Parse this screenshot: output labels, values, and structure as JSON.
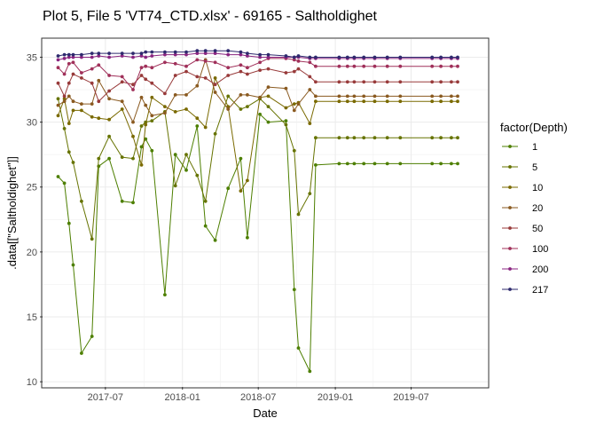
{
  "chart_data": {
    "type": "line",
    "title": "Plot 5, File 5 'VT74_CTD.xlsx' - 69165  -  Saltholdighet",
    "xlabel": "Date",
    "ylabel": ".data[[\"Saltholdighet\"]]",
    "x_ticks": [
      "2017-07",
      "2018-01",
      "2018-07",
      "2019-01",
      "2019-07"
    ],
    "y_ticks": [
      10,
      15,
      20,
      25,
      30,
      35
    ],
    "xlim": [
      "2017-02-01",
      "2019-12-31"
    ],
    "ylim": [
      9.6,
      36.4
    ],
    "grid": true,
    "legend_title": "factor(Depth)",
    "legend_position": "right",
    "x": [
      "2017-03-10",
      "2017-03-25",
      "2017-04-05",
      "2017-04-15",
      "2017-05-05",
      "2017-05-30",
      "2017-06-15",
      "2017-07-10",
      "2017-08-10",
      "2017-09-05",
      "2017-09-25",
      "2017-10-05",
      "2017-10-20",
      "2017-11-20",
      "2017-12-15",
      "2018-01-10",
      "2018-02-05",
      "2018-02-25",
      "2018-03-20",
      "2018-04-20",
      "2018-05-20",
      "2018-06-05",
      "2018-07-05",
      "2018-07-25",
      "2018-09-05",
      "2018-09-25",
      "2018-10-05",
      "2018-11-01",
      "2018-11-15",
      "2019-01-10",
      "2019-01-30",
      "2019-02-15",
      "2019-03-10",
      "2019-04-05",
      "2019-05-05",
      "2019-06-05",
      "2019-08-20",
      "2019-09-10",
      "2019-10-05",
      "2019-10-20"
    ],
    "series": [
      {
        "name": "1",
        "color": "#4d7f00",
        "values": [
          25.8,
          25.3,
          22.2,
          19.0,
          12.2,
          13.5,
          26.6,
          27.2,
          23.9,
          23.8,
          28.1,
          28.7,
          27.8,
          16.7,
          27.5,
          26.3,
          29.7,
          22.0,
          20.9,
          24.9,
          27.2,
          21.1,
          30.6,
          30.0,
          30.1,
          17.1,
          12.6,
          10.8,
          26.7,
          26.8,
          26.8,
          26.8,
          26.8,
          26.8,
          26.8,
          26.8,
          26.8,
          26.8,
          26.8,
          26.8
        ]
      },
      {
        "name": "5",
        "color": "#667300",
        "values": [
          31.8,
          29.5,
          27.7,
          26.9,
          23.9,
          21.0,
          27.2,
          28.9,
          27.3,
          27.2,
          29.7,
          30.0,
          30.1,
          30.8,
          25.1,
          27.5,
          25.9,
          23.9,
          29.1,
          32.0,
          31.0,
          31.2,
          31.8,
          31.2,
          29.8,
          27.8,
          22.9,
          24.5,
          28.8,
          28.8,
          28.8,
          28.8,
          28.8,
          28.8,
          28.8,
          28.8,
          28.8,
          28.8,
          28.8,
          28.8
        ]
      },
      {
        "name": "10",
        "color": "#7a6a00",
        "values": [
          30.5,
          31.8,
          29.9,
          30.9,
          30.9,
          30.4,
          30.3,
          30.2,
          31.0,
          28.9,
          26.7,
          29.8,
          31.9,
          31.2,
          30.8,
          31.0,
          30.3,
          29.6,
          33.4,
          31.2,
          24.7,
          25.5,
          31.9,
          32.0,
          31.1,
          31.4,
          31.5,
          29.9,
          31.6,
          31.6,
          31.6,
          31.6,
          31.6,
          31.6,
          31.6,
          31.6,
          31.6,
          31.6,
          31.6,
          31.6
        ]
      },
      {
        "name": "20",
        "color": "#8a5a20",
        "values": [
          31.3,
          31.6,
          32.0,
          31.6,
          31.4,
          31.4,
          33.2,
          31.8,
          31.6,
          30.0,
          31.9,
          31.3,
          30.5,
          30.7,
          32.1,
          32.1,
          32.8,
          34.8,
          32.3,
          31.0,
          32.1,
          32.1,
          31.9,
          32.7,
          32.6,
          30.9,
          31.4,
          32.5,
          32.0,
          32.0,
          32.0,
          32.0,
          32.0,
          32.0,
          32.0,
          32.0,
          32.0,
          32.0,
          32.0,
          32.0
        ]
      },
      {
        "name": "50",
        "color": "#983a3a",
        "values": [
          33.0,
          32.0,
          33.0,
          33.7,
          33.4,
          33.0,
          31.6,
          32.4,
          33.1,
          32.9,
          33.6,
          33.3,
          33.0,
          32.2,
          33.6,
          33.9,
          33.5,
          33.4,
          32.9,
          33.6,
          33.9,
          33.7,
          34.0,
          34.1,
          33.8,
          33.9,
          34.1,
          33.5,
          33.1,
          33.1,
          33.1,
          33.1,
          33.1,
          33.1,
          33.1,
          33.1,
          33.1,
          33.1,
          33.1,
          33.1
        ]
      },
      {
        "name": "100",
        "color": "#a0305a",
        "values": [
          34.2,
          33.7,
          34.5,
          34.6,
          33.8,
          34.1,
          34.4,
          33.6,
          33.5,
          32.5,
          34.2,
          34.3,
          34.2,
          34.6,
          34.5,
          34.3,
          34.8,
          34.7,
          34.6,
          34.2,
          34.4,
          34.2,
          34.6,
          34.9,
          34.9,
          34.8,
          34.7,
          34.6,
          34.3,
          34.3,
          34.3,
          34.3,
          34.3,
          34.3,
          34.3,
          34.3,
          34.3,
          34.3,
          34.3,
          34.3
        ]
      },
      {
        "name": "200",
        "color": "#8a2580",
        "values": [
          34.8,
          34.9,
          35.0,
          35.0,
          35.0,
          35.0,
          35.1,
          35.0,
          35.1,
          35.0,
          35.1,
          35.0,
          35.1,
          35.2,
          35.2,
          35.2,
          35.3,
          35.3,
          35.3,
          35.2,
          35.2,
          35.1,
          35.0,
          35.0,
          35.0,
          35.0,
          35.0,
          34.9,
          34.9,
          34.9,
          34.9,
          34.9,
          34.9,
          34.9,
          34.9,
          34.9,
          34.9,
          34.9,
          34.9,
          34.9
        ]
      },
      {
        "name": "217",
        "color": "#2e2a6e",
        "values": [
          35.1,
          35.2,
          35.2,
          35.2,
          35.2,
          35.3,
          35.3,
          35.3,
          35.3,
          35.3,
          35.3,
          35.4,
          35.4,
          35.4,
          35.4,
          35.4,
          35.5,
          35.5,
          35.5,
          35.5,
          35.4,
          35.3,
          35.2,
          35.2,
          35.1,
          35.0,
          35.1,
          35.0,
          35.0,
          35.0,
          35.0,
          35.0,
          35.0,
          35.0,
          35.0,
          35.0,
          35.0,
          35.0,
          35.0,
          35.0
        ]
      }
    ]
  }
}
